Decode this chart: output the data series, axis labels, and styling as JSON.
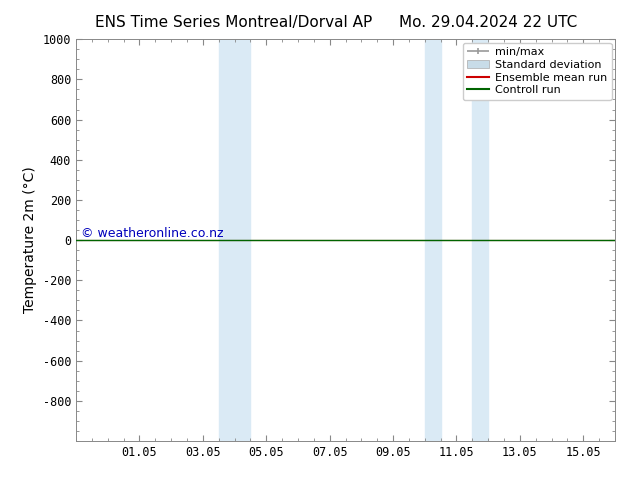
{
  "title_left": "ENS Time Series Montreal/Dorval AP",
  "title_right": "Mo. 29.04.2024 22 UTC",
  "ylabel": "Temperature 2m (°C)",
  "watermark": "© weatheronline.co.nz",
  "xtick_labels": [
    "01.05",
    "03.05",
    "05.05",
    "07.05",
    "09.05",
    "11.05",
    "13.05",
    "15.05"
  ],
  "xtick_positions": [
    2,
    4,
    6,
    8,
    10,
    12,
    14,
    16
  ],
  "ylim_top": -1000,
  "ylim_bottom": 1000,
  "ytick_positions": [
    -800,
    -600,
    -400,
    -200,
    0,
    200,
    400,
    600,
    800,
    1000
  ],
  "ytick_labels": [
    "-800",
    "-600",
    "-400",
    "-200",
    "0",
    "200",
    "400",
    "600",
    "800",
    "1000"
  ],
  "shaded_regions": [
    [
      4.5,
      5.0
    ],
    [
      5.0,
      5.5
    ],
    [
      11.0,
      11.5
    ],
    [
      12.5,
      13.0
    ]
  ],
  "shaded_color": "#daeaf5",
  "control_run_y": 0.0,
  "ensemble_mean_y": 0.0,
  "control_run_color": "#006400",
  "ensemble_mean_color": "#cc0000",
  "minmax_color": "#999999",
  "stddev_color": "#c8dce8",
  "background_color": "#ffffff",
  "x_min": 0,
  "x_max": 17,
  "title_fontsize": 11,
  "tick_fontsize": 8.5,
  "ylabel_fontsize": 10,
  "watermark_color": "#0000bb",
  "watermark_fontsize": 9,
  "legend_fontsize": 8,
  "legend_labels": [
    "min/max",
    "Standard deviation",
    "Ensemble mean run",
    "Controll run"
  ]
}
